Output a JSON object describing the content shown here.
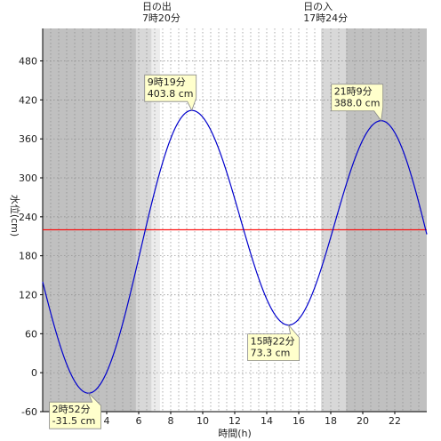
{
  "chart_data": {
    "type": "line",
    "xlabel": "時間(h)",
    "ylabel": "水位(cm)",
    "xlim": [
      0,
      24
    ],
    "ylim": [
      -60,
      530
    ],
    "x_ticks": [
      4,
      6,
      8,
      10,
      12,
      14,
      16,
      18,
      20,
      22
    ],
    "y_ticks": [
      -60,
      0,
      60,
      120,
      180,
      240,
      300,
      360,
      420,
      480
    ],
    "grid": true,
    "night_color": "#c0c0c0",
    "twilight_color": "#d8d8d8",
    "line_color": "#0000cc",
    "mean_line_color": "#ff0000",
    "mean_level": 220,
    "night_before": 5.83,
    "dawn_twilight_end": 6.8,
    "sun_events": [
      {
        "title": "日の出",
        "time": "7時20分",
        "x": 7.33
      },
      {
        "title": "日の入",
        "time": "17時24分",
        "x": 17.4
      }
    ],
    "dusk_twilight_end": 18.95,
    "extremes": [
      {
        "time_label": "2時52分",
        "value_label": "-31.5 cm",
        "x": 2.867,
        "y": -31.5
      },
      {
        "time_label": "9時19分",
        "value_label": "403.8 cm",
        "x": 9.317,
        "y": 403.8
      },
      {
        "time_label": "15時22分",
        "value_label": "73.3 cm",
        "x": 15.367,
        "y": 73.3
      },
      {
        "time_label": "21時9分",
        "value_label": "388.0 cm",
        "x": 21.15,
        "y": 388.0
      }
    ],
    "series": [
      {
        "values_start": {
          "x": 0,
          "y": 140
        },
        "values_end": {
          "x": 24,
          "y": 213
        }
      }
    ]
  }
}
